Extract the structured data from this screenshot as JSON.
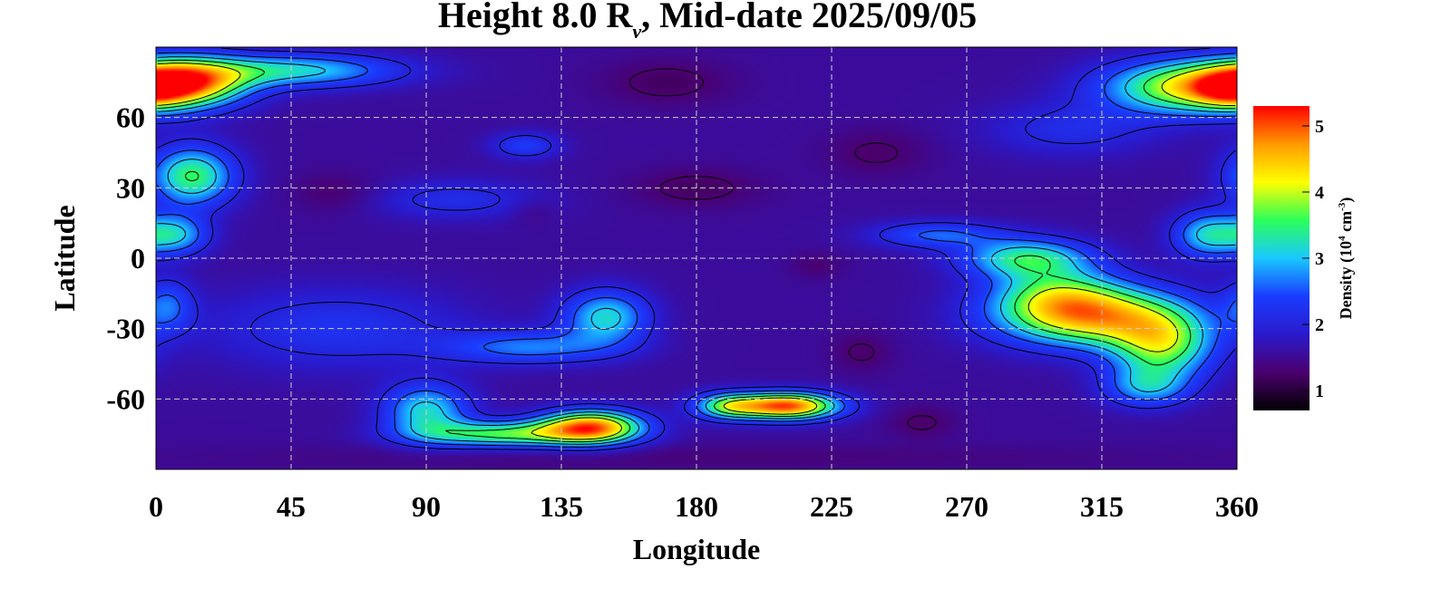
{
  "chart_data": {
    "type": "heatmap",
    "title": {
      "prefix": "Height 8.0 R",
      "subscript": "ν",
      "suffix": ", Mid-date 2025/09/05"
    },
    "xlabel": "Longitude",
    "ylabel": "Latitude",
    "xlim": [
      0,
      360
    ],
    "ylim": [
      -90,
      90
    ],
    "x_ticks": [
      0,
      45,
      90,
      135,
      180,
      225,
      270,
      315,
      360
    ],
    "y_ticks": [
      60,
      30,
      0,
      -30,
      -60
    ],
    "grid": true,
    "grid_style": "dashed",
    "contours": true,
    "colorbar": {
      "label_prefix": "Density (10",
      "label_exp1": "4",
      "label_mid": " cm",
      "label_exp2": "-3",
      "label_suffix": ")",
      "range": [
        0.7,
        5.3
      ],
      "ticks": [
        1,
        2,
        3,
        4,
        5
      ],
      "colormap": [
        "#000000",
        "#4b006e",
        "#2a1acc",
        "#1a3cff",
        "#19c8ff",
        "#2bff5a",
        "#ffff00",
        "#ff9a00",
        "#ff0000"
      ]
    },
    "background_level": 1.55,
    "features": [
      {
        "lon": 10,
        "lat": 75,
        "amp": 2.7,
        "sl": 14,
        "sb": 7
      },
      {
        "lon": 45,
        "lat": 80,
        "amp": 1.6,
        "sl": 25,
        "sb": 5
      },
      {
        "lon": 345,
        "lat": 73,
        "amp": 2.6,
        "sl": 20,
        "sb": 8
      },
      {
        "lon": 358,
        "lat": 72,
        "amp": 1.2,
        "sl": 8,
        "sb": 5
      },
      {
        "lon": 305,
        "lat": 55,
        "amp": 0.6,
        "sl": 20,
        "sb": 8
      },
      {
        "lon": 12,
        "lat": 35,
        "amp": 2.0,
        "sl": 10,
        "sb": 9
      },
      {
        "lon": 6,
        "lat": 10,
        "amp": 1.5,
        "sl": 8,
        "sb": 6
      },
      {
        "lon": 350,
        "lat": 10,
        "amp": 1.5,
        "sl": 8,
        "sb": 7
      },
      {
        "lon": 4,
        "lat": -20,
        "amp": 0.9,
        "sl": 6,
        "sb": 8
      },
      {
        "lon": 123,
        "lat": 48,
        "amp": 0.8,
        "sl": 8,
        "sb": 4
      },
      {
        "lon": 100,
        "lat": 25,
        "amp": 0.6,
        "sl": 20,
        "sb": 6
      },
      {
        "lon": 260,
        "lat": 10,
        "amp": 1.0,
        "sl": 15,
        "sb": 4
      },
      {
        "lon": 290,
        "lat": 0,
        "amp": 1.8,
        "sl": 15,
        "sb": 6
      },
      {
        "lon": 312,
        "lat": -25,
        "amp": 2.8,
        "sl": 22,
        "sb": 9
      },
      {
        "lon": 335,
        "lat": -38,
        "amp": 2.0,
        "sl": 12,
        "sb": 10
      },
      {
        "lon": 300,
        "lat": -15,
        "amp": 1.4,
        "sl": 15,
        "sb": 8
      },
      {
        "lon": 330,
        "lat": -55,
        "amp": 1.2,
        "sl": 10,
        "sb": 6
      },
      {
        "lon": 150,
        "lat": -25,
        "amp": 1.6,
        "sl": 10,
        "sb": 8
      },
      {
        "lon": 125,
        "lat": -38,
        "amp": 1.1,
        "sl": 20,
        "sb": 5
      },
      {
        "lon": 60,
        "lat": -30,
        "amp": 0.7,
        "sl": 30,
        "sb": 12
      },
      {
        "lon": 145,
        "lat": -72,
        "amp": 3.2,
        "sl": 12,
        "sb": 5
      },
      {
        "lon": 115,
        "lat": -75,
        "amp": 2.0,
        "sl": 20,
        "sb": 4
      },
      {
        "lon": 90,
        "lat": -65,
        "amp": 1.6,
        "sl": 10,
        "sb": 8
      },
      {
        "lon": 210,
        "lat": -63,
        "amp": 3.5,
        "sl": 12,
        "sb": 4
      },
      {
        "lon": 190,
        "lat": -63,
        "amp": 1.7,
        "sl": 8,
        "sb": 4
      },
      {
        "lon": 170,
        "lat": 75,
        "amp": -0.35,
        "sl": 15,
        "sb": 7
      },
      {
        "lon": 60,
        "lat": 28,
        "amp": -0.3,
        "sl": 10,
        "sb": 6
      },
      {
        "lon": 180,
        "lat": 30,
        "amp": -0.35,
        "sl": 15,
        "sb": 6
      },
      {
        "lon": 240,
        "lat": 45,
        "amp": -0.3,
        "sl": 12,
        "sb": 7
      },
      {
        "lon": 235,
        "lat": -40,
        "amp": -0.3,
        "sl": 7,
        "sb": 6
      },
      {
        "lon": 255,
        "lat": -70,
        "amp": -0.3,
        "sl": 8,
        "sb": 5
      },
      {
        "lon": 125,
        "lat": 20,
        "amp": -0.2,
        "sl": 5,
        "sb": 4
      },
      {
        "lon": 220,
        "lat": -3,
        "amp": -0.25,
        "sl": 6,
        "sb": 4
      },
      {
        "lon": 180,
        "lat": -85,
        "amp": -0.2,
        "sl": 120,
        "sb": 4
      }
    ],
    "contour_levels": [
      1.3,
      2.0,
      2.5,
      3.0,
      3.5,
      4.0
    ]
  }
}
